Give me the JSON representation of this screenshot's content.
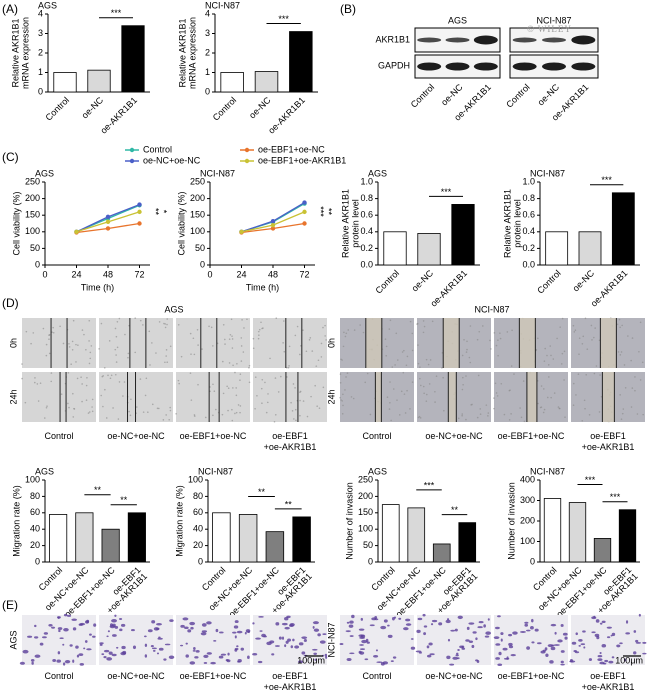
{
  "panel_labels": [
    "(A)",
    "(B)",
    "(C)",
    "(D)",
    "(E)"
  ],
  "watermark": "© WILEY",
  "blot": {
    "cell_lines": [
      "AGS",
      "NCI-N87"
    ],
    "proteins": [
      "AKR1B1",
      "GAPDH"
    ],
    "lanes": [
      "Control",
      "oe-NC",
      "oe-AKR1B1",
      "Control",
      "oe-NC",
      "oe-AKR1B1"
    ]
  },
  "wound": {
    "cell_lines": [
      "AGS",
      "NCI-N87"
    ],
    "times": [
      "0h",
      "24h",
      "0h",
      "24h"
    ],
    "groups": [
      [
        "Control"
      ],
      [
        "oe-NC+oe-NC"
      ],
      [
        "oe-EBF1+oe-NC"
      ],
      [
        "oe-EBF1",
        "+oe-AKR1B1"
      ],
      [
        "Control"
      ],
      [
        "oe-NC+oe-NC"
      ],
      [
        "oe-EBF1+oe-NC"
      ],
      [
        "oe-EBF1",
        "+oe-AKR1B1"
      ]
    ]
  },
  "invasion": {
    "cell_lines": [
      "AGS",
      "NCI-N87"
    ],
    "groups": [
      [
        "Control"
      ],
      [
        "oe-NC+oe-NC"
      ],
      [
        "oe-EBF1+oe-NC"
      ],
      [
        "oe-EBF1",
        "+oe-AKR1B1"
      ],
      [
        "Control"
      ],
      [
        "oe-NC+oe-NC"
      ],
      [
        "oe-EBF1+oe-NC"
      ],
      [
        "oe-EBF1",
        "+oe-AKR1B1"
      ]
    ],
    "scale_bars": [
      "100μm",
      "100μm"
    ]
  },
  "chart_data": [
    {
      "type": "bar",
      "title": "AGS",
      "y_label": [
        "Relative AKR1B1",
        "mRNA expression"
      ],
      "categories": [
        "Control",
        "oe-NC",
        "oe-AKR1B1"
      ],
      "values": [
        1,
        1.12,
        3.4
      ],
      "colors": [
        "#ffffff",
        "#d9d9d9",
        "#000000"
      ],
      "ylim": [
        0,
        4
      ],
      "yticks": [
        0,
        1,
        2,
        3,
        4
      ],
      "annotations": [
        "***"
      ]
    },
    {
      "type": "bar",
      "title": "NCI-N87",
      "y_label": [
        "Relative AKR1B1",
        "mRNA expression"
      ],
      "categories": [
        "Control",
        "oe-NC",
        "oe-AKR1B1"
      ],
      "values": [
        1,
        1.05,
        3.1
      ],
      "colors": [
        "#ffffff",
        "#d9d9d9",
        "#000000"
      ],
      "ylim": [
        0,
        4
      ],
      "yticks": [
        0,
        1,
        2,
        3,
        4
      ],
      "annotations": [
        "***"
      ]
    },
    {
      "type": "line",
      "title": "AGS",
      "x_label": "Time (h)",
      "y_label": [
        "Cell viability (%)"
      ],
      "x": [
        24,
        48,
        72
      ],
      "xlim": [
        0,
        80
      ],
      "xticks": [
        0,
        24,
        48,
        72
      ],
      "ylim": [
        0,
        250
      ],
      "yticks": [
        0,
        50,
        100,
        150,
        200,
        250
      ],
      "series": [
        {
          "name": "Control",
          "color": "#2fb8a6",
          "values": [
            100,
            140,
            180
          ]
        },
        {
          "name": "oe-NC+oe-NC",
          "color": "#4a5fc8",
          "values": [
            100,
            145,
            182
          ]
        },
        {
          "name": "oe-EBF1+oe-NC",
          "color": "#e8742c",
          "values": [
            98,
            110,
            125
          ]
        },
        {
          "name": "oe-EBF1+oe-AKR1B1",
          "color": "#c9c234",
          "values": [
            100,
            130,
            160
          ]
        }
      ],
      "annotations": [
        "**",
        "*"
      ]
    },
    {
      "type": "line",
      "title": "NCI-N87",
      "x_label": "Time (h)",
      "y_label": [
        "Cell viability (%)"
      ],
      "x": [
        24,
        48,
        72
      ],
      "xlim": [
        0,
        80
      ],
      "xticks": [
        0,
        24,
        48,
        72
      ],
      "ylim": [
        0,
        250
      ],
      "yticks": [
        0,
        50,
        100,
        150,
        200,
        250
      ],
      "series": [
        {
          "color": "#2fb8a6",
          "values": [
            100,
            130,
            185
          ]
        },
        {
          "color": "#4a5fc8",
          "values": [
            100,
            132,
            188
          ]
        },
        {
          "color": "#e8742c",
          "values": [
            98,
            110,
            125
          ]
        },
        {
          "color": "#c9c234",
          "values": [
            100,
            120,
            160
          ]
        }
      ],
      "annotations": [
        "***",
        "**"
      ]
    },
    {
      "type": "bar",
      "title": "AGS",
      "y_label": [
        "Relative AKR1B1",
        "protein level"
      ],
      "categories": [
        "Control",
        "oe-NC",
        "oe-AKR1B1"
      ],
      "values": [
        0.4,
        0.38,
        0.73
      ],
      "colors": [
        "#ffffff",
        "#d9d9d9",
        "#000000"
      ],
      "ylim": [
        0,
        1
      ],
      "yticks": [
        {
          "value": 0,
          "label": "0.0"
        },
        {
          "value": 0.2,
          "label": "0.2"
        },
        {
          "value": 0.4,
          "label": "0.4"
        },
        {
          "value": 0.6,
          "label": "0.6"
        },
        {
          "value": 0.8,
          "label": "0.8"
        },
        {
          "value": 1,
          "label": "1.0"
        }
      ],
      "annotations": [
        "***"
      ]
    },
    {
      "type": "bar",
      "title": "NCI-N87",
      "y_label": [
        "Relative AKR1B1",
        "protein level"
      ],
      "categories": [
        "Control",
        "oe-NC",
        "oe-AKR1B1"
      ],
      "values": [
        0.4,
        0.4,
        0.87
      ],
      "colors": [
        "#ffffff",
        "#d9d9d9",
        "#000000"
      ],
      "ylim": [
        0,
        1
      ],
      "yticks": [
        {
          "value": 0,
          "label": "0.0"
        },
        {
          "value": 0.2,
          "label": "0.2"
        },
        {
          "value": 0.4,
          "label": "0.4"
        },
        {
          "value": 0.6,
          "label": "0.6"
        },
        {
          "value": 0.8,
          "label": "0.8"
        },
        {
          "value": 1,
          "label": "1.0"
        }
      ],
      "annotations": [
        "***"
      ]
    },
    {
      "type": "bar",
      "title": "AGS",
      "y_label": [
        "Migration rate (%)"
      ],
      "categories": [
        "Control",
        "oe-NC+oe-NC",
        "oe-EBF1+oe-NC",
        [
          "oe-EBF1",
          "+oe-AKR1B1"
        ]
      ],
      "values": [
        58,
        60,
        40,
        60
      ],
      "colors": [
        "#ffffff",
        "#d9d9d9",
        "#7f7f7f",
        "#000000"
      ],
      "ylim": [
        0,
        100
      ],
      "yticks": [
        0,
        20,
        40,
        60,
        80,
        100
      ],
      "annotations": [
        "**",
        "**"
      ]
    },
    {
      "type": "bar",
      "title": "NCI-N87",
      "y_label": [
        "Migration rate (%)"
      ],
      "categories": [
        "Control",
        "oe-NC+oe-NC",
        "oe-EBF1+oe-NC",
        [
          "oe-EBF1",
          "+oe-AKR1B1"
        ]
      ],
      "values": [
        60,
        58,
        37,
        55
      ],
      "colors": [
        "#ffffff",
        "#d9d9d9",
        "#7f7f7f",
        "#000000"
      ],
      "ylim": [
        0,
        100
      ],
      "yticks": [
        0,
        20,
        40,
        60,
        80,
        100
      ],
      "annotations": [
        "**",
        "**"
      ]
    },
    {
      "type": "bar",
      "title": "AGS",
      "y_label": [
        "Number of invasion"
      ],
      "categories": [
        "Control",
        "oe-NC+oe-NC",
        "oe-EBF1+oe-NC",
        [
          "oe-EBF1",
          "+oe-AKR1B1"
        ]
      ],
      "values": [
        175,
        165,
        55,
        120
      ],
      "colors": [
        "#ffffff",
        "#d9d9d9",
        "#7f7f7f",
        "#000000"
      ],
      "ylim": [
        0,
        250
      ],
      "yticks": [
        0,
        50,
        100,
        150,
        200,
        250
      ],
      "annotations": [
        "***",
        "**"
      ]
    },
    {
      "type": "bar",
      "title": "NCI-N87",
      "y_label": [
        "Number of invasion"
      ],
      "categories": [
        "Control",
        "oe-NC+oe-NC",
        "oe-EBF1+oe-NC",
        [
          "oe-EBF1",
          "+oe-AKR1B1"
        ]
      ],
      "values": [
        310,
        290,
        115,
        255
      ],
      "colors": [
        "#ffffff",
        "#d9d9d9",
        "#7f7f7f",
        "#000000"
      ],
      "ylim": [
        0,
        400
      ],
      "yticks": [
        0,
        100,
        200,
        300,
        400
      ],
      "annotations": [
        "***",
        "***"
      ]
    }
  ]
}
